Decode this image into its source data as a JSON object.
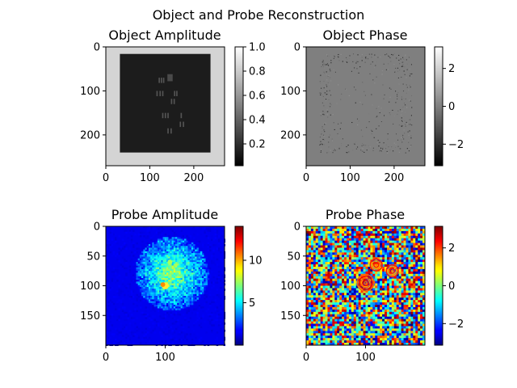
{
  "figure": {
    "suptitle": "Object and Probe Reconstruction"
  },
  "chart_data": [
    {
      "type": "heatmap",
      "title": "Object Amplitude",
      "xlim": [
        0,
        270
      ],
      "ylim": [
        270,
        0
      ],
      "xticks": [
        "0",
        "100",
        "200"
      ],
      "xtick_values": [
        0,
        100,
        200
      ],
      "yticks": [
        "0",
        "100",
        "200"
      ],
      "ytick_values": [
        0,
        100,
        200
      ],
      "colormap": "gray",
      "colorbar_range": [
        0.02,
        1.0
      ],
      "colorbar_ticks": [
        "0.2",
        "0.4",
        "0.6",
        "0.8",
        "1.0"
      ],
      "colorbar_tick_values": [
        0.2,
        0.4,
        0.6,
        0.8,
        1.0
      ]
    },
    {
      "type": "heatmap",
      "title": "Object Phase",
      "xlim": [
        0,
        270
      ],
      "ylim": [
        270,
        0
      ],
      "xticks": [
        "0",
        "100",
        "200"
      ],
      "xtick_values": [
        0,
        100,
        200
      ],
      "yticks": [
        "0",
        "100",
        "200"
      ],
      "ytick_values": [
        0,
        100,
        200
      ],
      "colormap": "gray",
      "colorbar_range": [
        -3.14,
        3.14
      ],
      "colorbar_ticks": [
        "2",
        "0",
        "−2"
      ],
      "colorbar_tick_values": [
        2,
        0,
        -2
      ]
    },
    {
      "type": "heatmap",
      "title": "Probe Amplitude",
      "xlim": [
        0,
        200
      ],
      "ylim": [
        200,
        0
      ],
      "xticks": [
        "0",
        "100"
      ],
      "xtick_values": [
        0,
        100
      ],
      "yticks": [
        "0",
        "50",
        "100",
        "150"
      ],
      "ytick_values": [
        0,
        50,
        100,
        150
      ],
      "colormap": "jet",
      "colorbar_range": [
        0,
        14
      ],
      "colorbar_ticks": [
        "10",
        "5"
      ],
      "colorbar_tick_values": [
        10,
        5
      ]
    },
    {
      "type": "heatmap",
      "title": "Probe Phase",
      "xlim": [
        0,
        200
      ],
      "ylim": [
        200,
        0
      ],
      "xticks": [
        "0",
        "100"
      ],
      "xtick_values": [
        0,
        100
      ],
      "yticks": [
        "0",
        "50",
        "100",
        "150"
      ],
      "ytick_values": [
        0,
        50,
        100,
        150
      ],
      "colormap": "jet",
      "colorbar_range": [
        -3.14,
        3.14
      ],
      "colorbar_ticks": [
        "2",
        "0",
        "−2"
      ],
      "colorbar_tick_values": [
        2,
        0,
        -2
      ]
    }
  ]
}
